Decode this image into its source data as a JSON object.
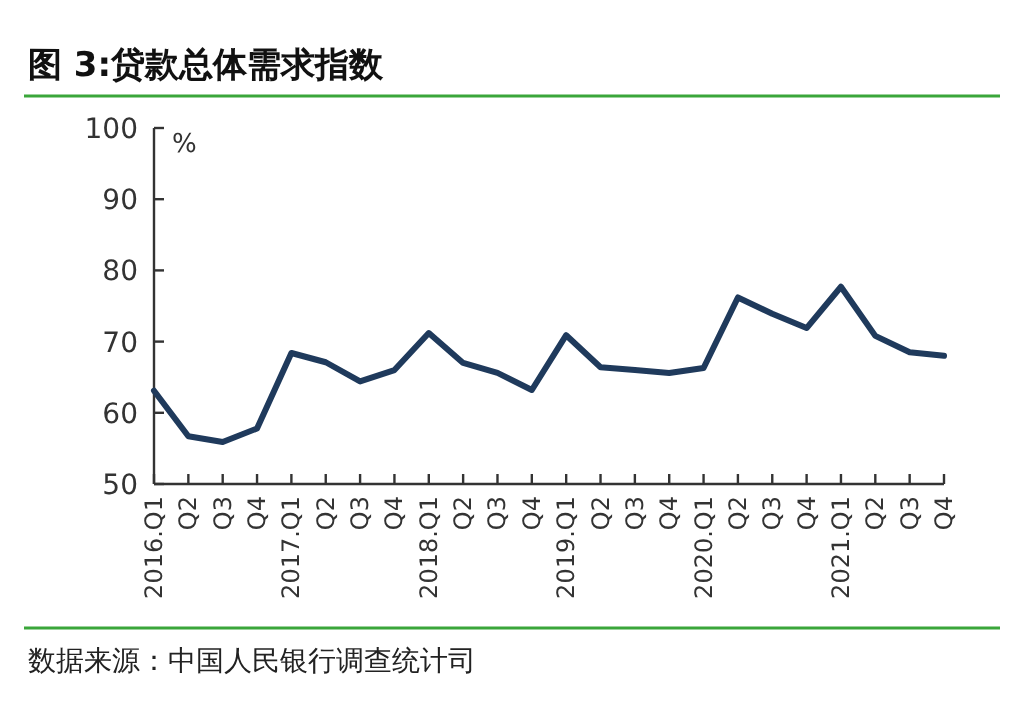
{
  "chart_data": {
    "type": "line",
    "title": "图 3:贷款总体需求指数",
    "ylabel": "%",
    "categories": [
      "2016.Q1",
      "Q2",
      "Q3",
      "Q4",
      "2017.Q1",
      "Q2",
      "Q3",
      "Q4",
      "2018.Q1",
      "Q2",
      "Q3",
      "Q4",
      "2019.Q1",
      "Q2",
      "Q3",
      "Q4",
      "2020.Q1",
      "Q2",
      "Q3",
      "Q4",
      "2021.Q1",
      "Q2",
      "Q3",
      "Q4"
    ],
    "series": [
      {
        "color": "#1f3a5c",
        "values": [
          63.1,
          56.7,
          55.9,
          57.8,
          68.4,
          67.1,
          64.4,
          66.0,
          71.2,
          67.0,
          65.6,
          63.2,
          70.9,
          66.4,
          66.0,
          65.6,
          66.3,
          76.2,
          73.9,
          71.9,
          77.7,
          70.8,
          68.5,
          68.0
        ]
      }
    ],
    "ylim": [
      50,
      100
    ],
    "yticks": [
      50,
      60,
      70,
      80,
      90,
      100
    ],
    "grid": false,
    "marker": "none",
    "line_style": "solid",
    "annotations": [
      "数据来源：中国人民银行调查统计司"
    ]
  }
}
